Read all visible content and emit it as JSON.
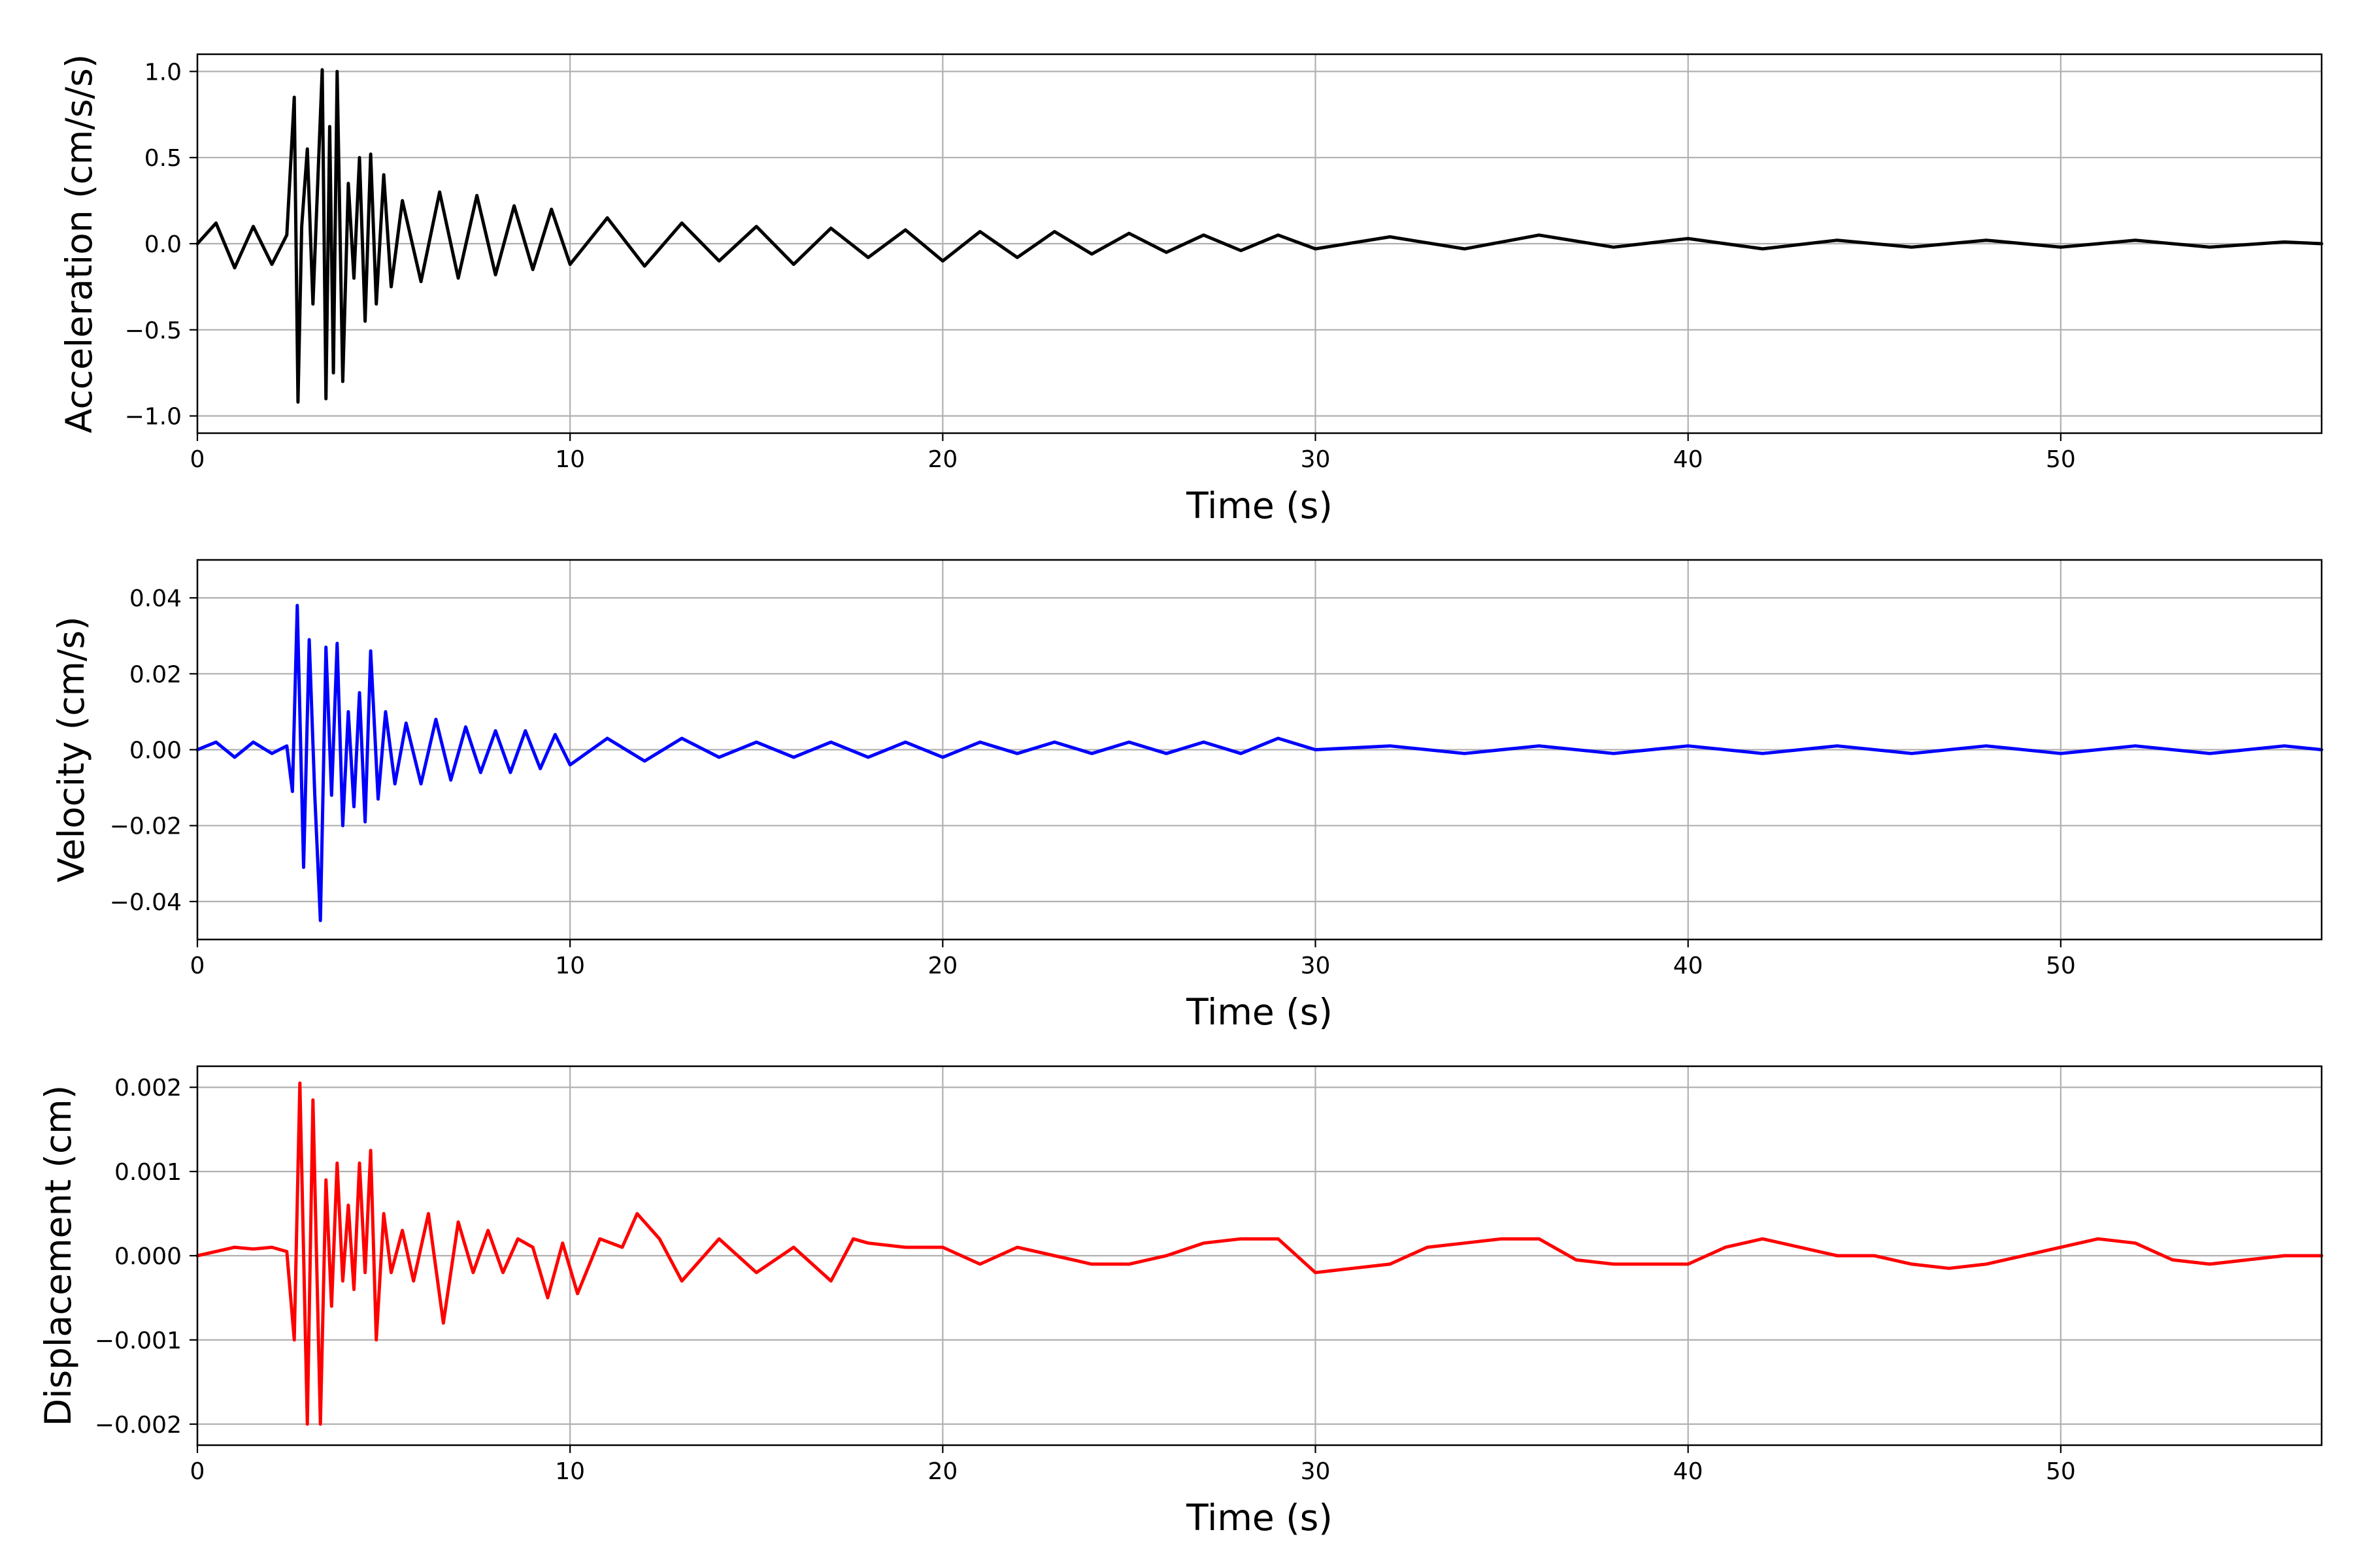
{
  "chart_data": [
    {
      "type": "line",
      "title": "",
      "xlabel": "Time (s)",
      "ylabel": "Acceleration (cm/s/s)",
      "xlim": [
        0,
        57
      ],
      "ylim": [
        -1.1,
        1.1
      ],
      "xticks": [
        0,
        10,
        20,
        30,
        40,
        50
      ],
      "yticks": [
        -1.0,
        -0.5,
        0.0,
        0.5,
        1.0
      ],
      "ytick_labels": [
        "−1.0",
        "−0.5",
        "0.0",
        "0.5",
        "1.0"
      ],
      "grid": true,
      "color": "#000000",
      "series": [
        {
          "x": [
            0,
            0.5,
            1,
            1.5,
            2,
            2.4,
            2.6,
            2.7,
            2.8,
            2.95,
            3.1,
            3.2,
            3.35,
            3.45,
            3.55,
            3.65,
            3.75,
            3.9,
            4.05,
            4.2,
            4.35,
            4.5,
            4.65,
            4.8,
            5,
            5.2,
            5.5,
            6,
            6.5,
            7,
            7.5,
            8,
            8.5,
            9,
            9.5,
            10,
            11,
            12,
            13,
            14,
            15,
            16,
            17,
            18,
            19,
            20,
            21,
            22,
            23,
            24,
            25,
            26,
            27,
            28,
            29,
            30,
            32,
            34,
            36,
            38,
            40,
            42,
            44,
            46,
            48,
            50,
            52,
            54,
            56,
            57
          ],
          "y": [
            0.0,
            0.12,
            -0.14,
            0.1,
            -0.12,
            0.05,
            0.85,
            -0.92,
            0.1,
            0.55,
            -0.35,
            0.2,
            1.01,
            -0.9,
            0.68,
            -0.75,
            1.0,
            -0.8,
            0.35,
            -0.2,
            0.5,
            -0.45,
            0.52,
            -0.35,
            0.4,
            -0.25,
            0.25,
            -0.22,
            0.3,
            -0.2,
            0.28,
            -0.18,
            0.22,
            -0.15,
            0.2,
            -0.12,
            0.15,
            -0.13,
            0.12,
            -0.1,
            0.1,
            -0.12,
            0.09,
            -0.08,
            0.08,
            -0.1,
            0.07,
            -0.08,
            0.07,
            -0.06,
            0.06,
            -0.05,
            0.05,
            -0.04,
            0.05,
            -0.03,
            0.04,
            -0.03,
            0.05,
            -0.02,
            0.03,
            -0.03,
            0.02,
            -0.02,
            0.02,
            -0.02,
            0.02,
            -0.02,
            0.01,
            0.0
          ]
        }
      ]
    },
    {
      "type": "line",
      "title": "",
      "xlabel": "Time (s)",
      "ylabel": "Velocity (cm/s)",
      "xlim": [
        0,
        57
      ],
      "ylim": [
        -0.05,
        0.05
      ],
      "xticks": [
        0,
        10,
        20,
        30,
        40,
        50
      ],
      "yticks": [
        -0.04,
        -0.02,
        0.0,
        0.02,
        0.04
      ],
      "ytick_labels": [
        "−0.04",
        "−0.02",
        "0.00",
        "0.02",
        "0.04"
      ],
      "grid": true,
      "color": "#0000ff",
      "series": [
        {
          "x": [
            0,
            0.5,
            1,
            1.5,
            2,
            2.4,
            2.55,
            2.68,
            2.85,
            3.0,
            3.15,
            3.3,
            3.45,
            3.6,
            3.75,
            3.9,
            4.05,
            4.2,
            4.35,
            4.5,
            4.65,
            4.85,
            5.05,
            5.3,
            5.6,
            6,
            6.4,
            6.8,
            7.2,
            7.6,
            8,
            8.4,
            8.8,
            9.2,
            9.6,
            10,
            11,
            12,
            13,
            14,
            15,
            16,
            17,
            18,
            19,
            20,
            21,
            22,
            23,
            24,
            25,
            26,
            27,
            28,
            29,
            30,
            32,
            34,
            36,
            38,
            40,
            42,
            44,
            46,
            48,
            50,
            52,
            54,
            56,
            57
          ],
          "y": [
            0.0,
            0.002,
            -0.002,
            0.002,
            -0.001,
            0.001,
            -0.011,
            0.038,
            -0.031,
            0.029,
            -0.012,
            -0.045,
            0.027,
            -0.012,
            0.028,
            -0.02,
            0.01,
            -0.015,
            0.015,
            -0.019,
            0.026,
            -0.013,
            0.01,
            -0.009,
            0.007,
            -0.009,
            0.008,
            -0.008,
            0.006,
            -0.006,
            0.005,
            -0.006,
            0.005,
            -0.005,
            0.004,
            -0.004,
            0.003,
            -0.003,
            0.003,
            -0.002,
            0.002,
            -0.002,
            0.002,
            -0.002,
            0.002,
            -0.002,
            0.002,
            -0.001,
            0.002,
            -0.001,
            0.002,
            -0.001,
            0.002,
            -0.001,
            0.003,
            0.0,
            0.001,
            -0.001,
            0.001,
            -0.001,
            0.001,
            -0.001,
            0.001,
            -0.001,
            0.001,
            -0.001,
            0.001,
            -0.001,
            0.001,
            0.0
          ]
        }
      ]
    },
    {
      "type": "line",
      "title": "",
      "xlabel": "Time (s)",
      "ylabel": "Displacement (cm)",
      "xlim": [
        0,
        57
      ],
      "ylim": [
        -0.00225,
        0.00225
      ],
      "xticks": [
        0,
        10,
        20,
        30,
        40,
        50
      ],
      "yticks": [
        -0.002,
        -0.001,
        0.0,
        0.001,
        0.002
      ],
      "ytick_labels": [
        "−0.002",
        "−0.001",
        "0.000",
        "0.001",
        "0.002"
      ],
      "grid": true,
      "color": "#ff0000",
      "series": [
        {
          "x": [
            0,
            0.5,
            1,
            1.5,
            2,
            2.4,
            2.6,
            2.75,
            2.95,
            3.1,
            3.3,
            3.45,
            3.6,
            3.75,
            3.9,
            4.05,
            4.2,
            4.35,
            4.5,
            4.65,
            4.8,
            5.0,
            5.2,
            5.5,
            5.8,
            6.2,
            6.6,
            7.0,
            7.4,
            7.8,
            8.2,
            8.6,
            9.0,
            9.4,
            9.8,
            10.2,
            10.8,
            11.4,
            11.8,
            12.4,
            13.0,
            14.0,
            15.0,
            16.0,
            17.0,
            17.6,
            18.0,
            19.0,
            20.0,
            21.0,
            22.0,
            23.0,
            24.0,
            25.0,
            26.0,
            27.0,
            28.0,
            29.0,
            30.0,
            31.0,
            32.0,
            33.0,
            34.0,
            35.0,
            36.0,
            37.0,
            38.0,
            39.0,
            40.0,
            41.0,
            42.0,
            43.0,
            44.0,
            45.0,
            46.0,
            47.0,
            48.0,
            49.0,
            50.0,
            51.0,
            52.0,
            53.0,
            54.0,
            55.0,
            56.0,
            57.0
          ],
          "y": [
            0.0,
            5e-05,
            0.0001,
            8e-05,
            0.0001,
            5e-05,
            -0.001,
            0.00205,
            -0.002,
            0.00185,
            -0.002,
            0.0009,
            -0.0006,
            0.0011,
            -0.0003,
            0.0006,
            -0.0004,
            0.0011,
            -0.0002,
            0.00125,
            -0.001,
            0.0005,
            -0.0002,
            0.0003,
            -0.0003,
            0.0005,
            -0.0008,
            0.0004,
            -0.0002,
            0.0003,
            -0.0002,
            0.0002,
            0.0001,
            -0.0005,
            0.00015,
            -0.00045,
            0.0002,
            0.0001,
            0.0005,
            0.0002,
            -0.0003,
            0.0002,
            -0.0002,
            0.0001,
            -0.0003,
            0.0002,
            0.00015,
            0.0001,
            0.0001,
            -0.0001,
            0.0001,
            0.0,
            -0.0001,
            -0.0001,
            0.0,
            0.00015,
            0.0002,
            0.0002,
            -0.0002,
            -0.00015,
            -0.0001,
            0.0001,
            0.00015,
            0.0002,
            0.0002,
            -5e-05,
            -0.0001,
            -0.0001,
            -0.0001,
            0.0001,
            0.0002,
            0.0001,
            0.0,
            0.0,
            -0.0001,
            -0.00015,
            -0.0001,
            0.0,
            0.0001,
            0.0002,
            0.00015,
            -5e-05,
            -0.0001,
            -5e-05,
            0.0,
            0.0
          ]
        }
      ]
    }
  ]
}
